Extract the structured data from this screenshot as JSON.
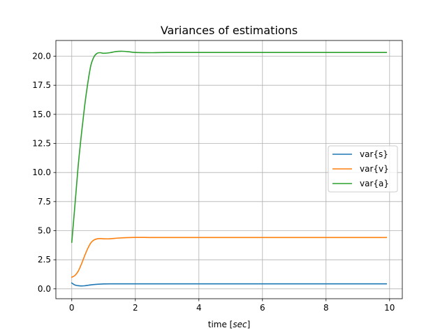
{
  "chart_data": {
    "type": "line",
    "title": "Variances of estimations",
    "xlabel": "time [",
    "xlabel_italic": "sec",
    "xlabel_end": "]",
    "ylabel": "",
    "xlim": [
      -0.5,
      10.4
    ],
    "ylim": [
      -0.85,
      21.35
    ],
    "xticks": [
      0,
      2,
      4,
      6,
      8,
      10
    ],
    "xtick_labels": [
      "0",
      "2",
      "4",
      "6",
      "8",
      "10"
    ],
    "yticks": [
      0.0,
      2.5,
      5.0,
      7.5,
      10.0,
      12.5,
      15.0,
      17.5,
      20.0
    ],
    "ytick_labels": [
      "0.0",
      "2.5",
      "5.0",
      "7.5",
      "10.0",
      "12.5",
      "15.0",
      "17.5",
      "20.0"
    ],
    "grid": true,
    "legend_position": "center-right",
    "series": [
      {
        "name": "var{s}",
        "color": "#1f77b4",
        "x": [
          0,
          0.1,
          0.2,
          0.3,
          0.4,
          0.5,
          0.6,
          0.8,
          1.0,
          1.2,
          1.5,
          2.0,
          3.0,
          5.0,
          7.0,
          9.9
        ],
        "y": [
          0.5,
          0.33,
          0.27,
          0.25,
          0.26,
          0.3,
          0.34,
          0.39,
          0.42,
          0.43,
          0.43,
          0.43,
          0.43,
          0.43,
          0.43,
          0.43
        ]
      },
      {
        "name": "var{v}",
        "color": "#ff7f0e",
        "x": [
          0,
          0.1,
          0.2,
          0.3,
          0.4,
          0.5,
          0.6,
          0.7,
          0.8,
          0.9,
          1.0,
          1.2,
          1.5,
          2.0,
          2.5,
          3.0,
          5.0,
          7.0,
          9.9
        ],
        "y": [
          1.0,
          1.15,
          1.5,
          2.1,
          2.8,
          3.45,
          3.95,
          4.2,
          4.3,
          4.32,
          4.3,
          4.3,
          4.37,
          4.42,
          4.41,
          4.41,
          4.41,
          4.41,
          4.41
        ]
      },
      {
        "name": "var{a}",
        "color": "#2ca02c",
        "x": [
          0,
          0.1,
          0.2,
          0.3,
          0.4,
          0.5,
          0.6,
          0.7,
          0.8,
          0.9,
          1.0,
          1.2,
          1.4,
          1.6,
          1.8,
          2.0,
          2.5,
          3.0,
          5.0,
          7.0,
          9.9
        ],
        "y": [
          4.0,
          7.2,
          10.5,
          13.2,
          15.6,
          17.6,
          19.2,
          19.95,
          20.25,
          20.3,
          20.25,
          20.3,
          20.4,
          20.42,
          20.38,
          20.32,
          20.3,
          20.32,
          20.32,
          20.32,
          20.32
        ]
      }
    ]
  }
}
